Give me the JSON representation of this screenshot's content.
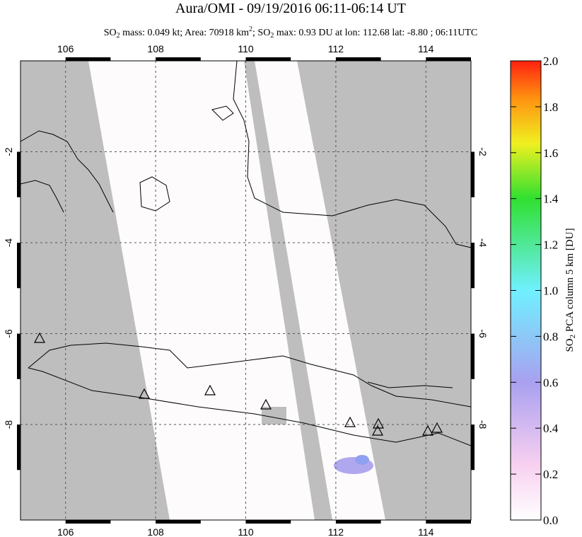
{
  "header": {
    "title": "Aura/OMI - 09/19/2016 06:11-06:14 UT",
    "subtitle": [
      "SO",
      "2",
      " mass: 0.049 kt; Area: 70918 km",
      "2",
      "; SO",
      "2",
      " max: 0.93 DU at lon: 112.68 lat: -8.80 ; 06:11UTC"
    ]
  },
  "map": {
    "lon_range": [
      105,
      115
    ],
    "lat_range": [
      -10.1,
      0
    ],
    "lon_ticks": [
      106,
      108,
      110,
      112,
      114
    ],
    "lat_ticks": [
      -2,
      -4,
      -6,
      -8
    ]
  },
  "colorbar": {
    "label": [
      "SO",
      "2",
      " PCA column 5 km [DU]"
    ],
    "range": [
      0,
      2
    ],
    "ticks": [
      {
        "value": 0,
        "label": "0.0"
      },
      {
        "value": 0.2,
        "label": "0.2"
      },
      {
        "value": 0.4,
        "label": "0.4"
      },
      {
        "value": 0.6,
        "label": "0.6"
      },
      {
        "value": 0.8,
        "label": "0.8"
      },
      {
        "value": 1,
        "label": "1.0"
      },
      {
        "value": 1.2,
        "label": "1.2"
      },
      {
        "value": 1.4,
        "label": "1.4"
      },
      {
        "value": 1.6,
        "label": "1.6"
      },
      {
        "value": 1.8,
        "label": "1.8"
      },
      {
        "value": 2,
        "label": "2.0"
      }
    ]
  }
}
